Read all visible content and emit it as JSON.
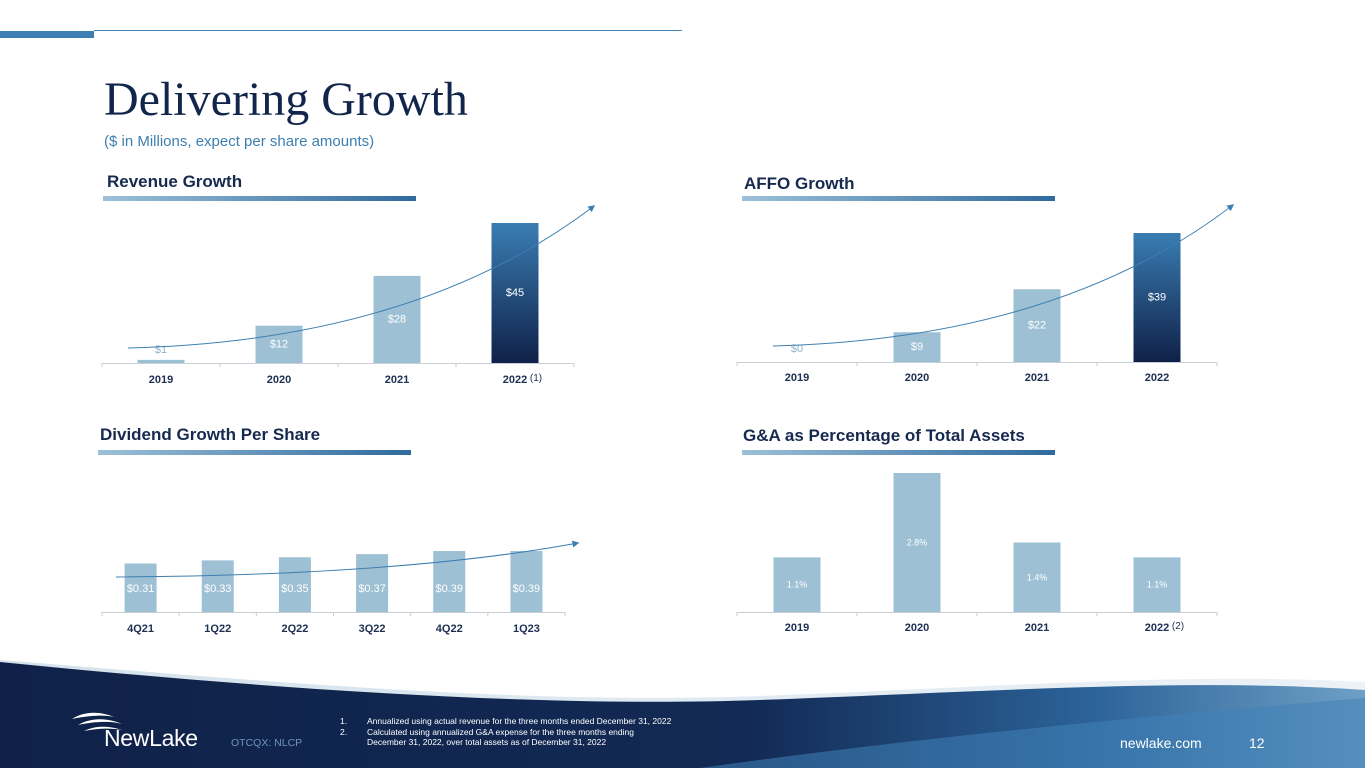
{
  "slide": {
    "title": "Delivering Growth",
    "subtitle": "($ in Millions, expect per share amounts)",
    "page_number": "12",
    "website": "newlake.com",
    "ticker": "OTCQX: NLCP",
    "logo_text": "NewLake"
  },
  "footnotes": [
    {
      "num": "1.",
      "lines": [
        "Annualized using actual revenue for the three months ended December 31, 2022"
      ]
    },
    {
      "num": "2.",
      "lines": [
        "Calculated using annualized G&A expense for the three months ending",
        "December 31, 2022, over total assets as of December 31, 2022"
      ]
    }
  ],
  "colors": {
    "bar_light": "#9dc0d5",
    "bar_highlight_top": "#3a7db3",
    "bar_highlight_bottom": "#0f2148",
    "navy": "#12264d",
    "accent_blue": "#3d7fb0"
  },
  "chart_data": [
    {
      "type": "bar",
      "title": "Revenue Growth",
      "categories": [
        "2019",
        "2020",
        "2021",
        "2022"
      ],
      "category_notes": [
        "",
        "",
        "",
        "(1)"
      ],
      "values": [
        1,
        12,
        28,
        45
      ],
      "labels": [
        "$1",
        "$12",
        "$28",
        "$45"
      ],
      "highlight_last": true,
      "trend_arrow": true,
      "ylim": [
        0,
        45
      ]
    },
    {
      "type": "bar",
      "title": "AFFO Growth",
      "categories": [
        "2019",
        "2020",
        "2021",
        "2022"
      ],
      "category_notes": [
        "",
        "",
        "",
        ""
      ],
      "values": [
        0,
        9,
        22,
        39
      ],
      "labels": [
        "$0",
        "$9",
        "$22",
        "$39"
      ],
      "highlight_last": true,
      "trend_arrow": true,
      "ylim": [
        0,
        39
      ]
    },
    {
      "type": "bar",
      "title": "Dividend Growth Per Share",
      "categories": [
        "4Q21",
        "1Q22",
        "2Q22",
        "3Q22",
        "4Q22",
        "1Q23"
      ],
      "category_notes": [
        "",
        "",
        "",
        "",
        "",
        ""
      ],
      "values": [
        0.31,
        0.33,
        0.35,
        0.37,
        0.39,
        0.39
      ],
      "labels": [
        "$0.31",
        "$0.33",
        "$0.35",
        "$0.37",
        "$0.39",
        "$0.39"
      ],
      "highlight_last": false,
      "trend_arrow": true,
      "ylim": [
        0,
        0.39
      ]
    },
    {
      "type": "bar",
      "title": "G&A as Percentage of Total Assets",
      "categories": [
        "2019",
        "2020",
        "2021",
        "2022"
      ],
      "category_notes": [
        "",
        "",
        "",
        "(2)"
      ],
      "values": [
        1.1,
        2.8,
        1.4,
        1.1
      ],
      "labels": [
        "1.1%",
        "2.8%",
        "1.4%",
        "1.1%"
      ],
      "highlight_last": false,
      "trend_arrow": false,
      "ylim": [
        0,
        2.8
      ]
    }
  ]
}
